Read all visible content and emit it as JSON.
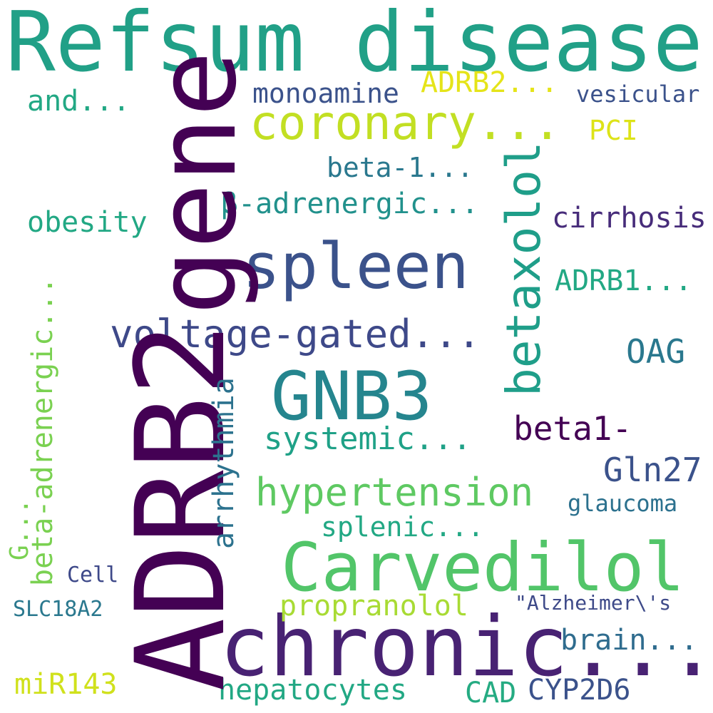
{
  "words": {
    "refsum_disease": {
      "text": "Refsum disease",
      "color": "#21a087"
    },
    "gene": {
      "text": "gene",
      "color": "#440154"
    },
    "adrb2": {
      "text": "ADRB2",
      "color": "#440154"
    },
    "chronic": {
      "text": "chronic...",
      "color": "#482273"
    },
    "carvedilol": {
      "text": "Carvedilol",
      "color": "#52c569"
    },
    "gnb3": {
      "text": "GNB3",
      "color": "#25858e"
    },
    "spleen": {
      "text": "spleen",
      "color": "#3b528b"
    },
    "coronary": {
      "text": "coronary...",
      "color": "#c2df23"
    },
    "betaxolol": {
      "text": "betaxolol",
      "color": "#1f9e89"
    },
    "voltage_gated": {
      "text": "voltage-gated...",
      "color": "#3e4989"
    },
    "hypertension": {
      "text": "hypertension",
      "color": "#5ec962"
    },
    "systemic": {
      "text": "systemic...",
      "color": "#1fa187"
    },
    "monoamine": {
      "text": "monoamine",
      "color": "#3b528b"
    },
    "beta_1": {
      "text": "beta-1...",
      "color": "#2a788e"
    },
    "beta_adrenergic_greek": {
      "text": "β-adrenergic...",
      "color": "#21918c"
    },
    "obesity": {
      "text": "obesity",
      "color": "#22a884"
    },
    "and": {
      "text": "and...",
      "color": "#22a884"
    },
    "adrb2_small": {
      "text": "ADRB2...",
      "color": "#e5e419"
    },
    "pci": {
      "text": "PCI",
      "color": "#dde318"
    },
    "vesicular": {
      "text": "vesicular",
      "color": "#3b528b"
    },
    "cirrhosis": {
      "text": "cirrhosis",
      "color": "#472c7a"
    },
    "adrb1": {
      "text": "ADRB1...",
      "color": "#22a884"
    },
    "oag": {
      "text": "OAG",
      "color": "#2a788e"
    },
    "beta1": {
      "text": "beta1-",
      "color": "#440154"
    },
    "gln27": {
      "text": "Gln27",
      "color": "#3b528b"
    },
    "glaucoma": {
      "text": "glaucoma",
      "color": "#2c718e"
    },
    "arrhythmia": {
      "text": "arrhythmia",
      "color": "#2c728e"
    },
    "beta_adrenergic": {
      "text": "beta-adrenergic...",
      "color": "#7ad151"
    },
    "g": {
      "text": "G...",
      "color": "#7ad151"
    },
    "splenic": {
      "text": "splenic...",
      "color": "#22a884"
    },
    "propranolol": {
      "text": "propranolol",
      "color": "#a8db34"
    },
    "alzheimer": {
      "text": "\"Alzheimer\\'s",
      "color": "#3e4a89"
    },
    "brain": {
      "text": "brain...",
      "color": "#2f6c8e"
    },
    "cell": {
      "text": "Cell",
      "color": "#3e4989"
    },
    "slc18a2": {
      "text": "SLC18A2",
      "color": "#2a788e"
    },
    "mir143": {
      "text": "miR143",
      "color": "#d0e11c"
    },
    "hepatocytes": {
      "text": "hepatocytes",
      "color": "#22a884"
    },
    "cad": {
      "text": "CAD",
      "color": "#25ab82"
    },
    "cyp2d6": {
      "text": "CYP2D6",
      "color": "#3b528b"
    }
  }
}
